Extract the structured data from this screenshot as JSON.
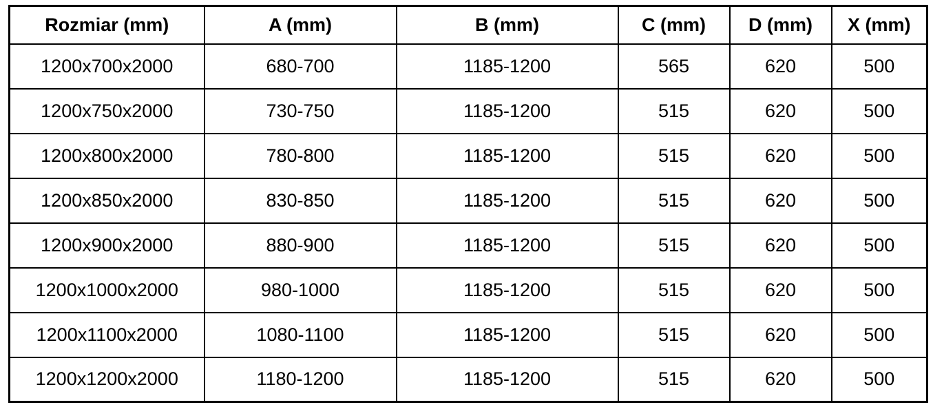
{
  "colors": {
    "border": "#000000",
    "text": "#000000",
    "background": "#ffffff"
  },
  "chart_data": {
    "type": "table",
    "columns": [
      "Rozmiar (mm)",
      "A (mm)",
      "B (mm)",
      "C (mm)",
      "D (mm)",
      "X (mm)"
    ],
    "rows": [
      [
        "1200x700x2000",
        "680-700",
        "1185-1200",
        "565",
        "620",
        "500"
      ],
      [
        "1200x750x2000",
        "730-750",
        "1185-1200",
        "515",
        "620",
        "500"
      ],
      [
        "1200x800x2000",
        "780-800",
        "1185-1200",
        "515",
        "620",
        "500"
      ],
      [
        "1200x850x2000",
        "830-850",
        "1185-1200",
        "515",
        "620",
        "500"
      ],
      [
        "1200x900x2000",
        "880-900",
        "1185-1200",
        "515",
        "620",
        "500"
      ],
      [
        "1200x1000x2000",
        "980-1000",
        "1185-1200",
        "515",
        "620",
        "500"
      ],
      [
        "1200x1100x2000",
        "1080-1100",
        "1185-1200",
        "515",
        "620",
        "500"
      ],
      [
        "1200x1200x2000",
        "1180-1200",
        "1185-1200",
        "515",
        "620",
        "500"
      ]
    ]
  }
}
